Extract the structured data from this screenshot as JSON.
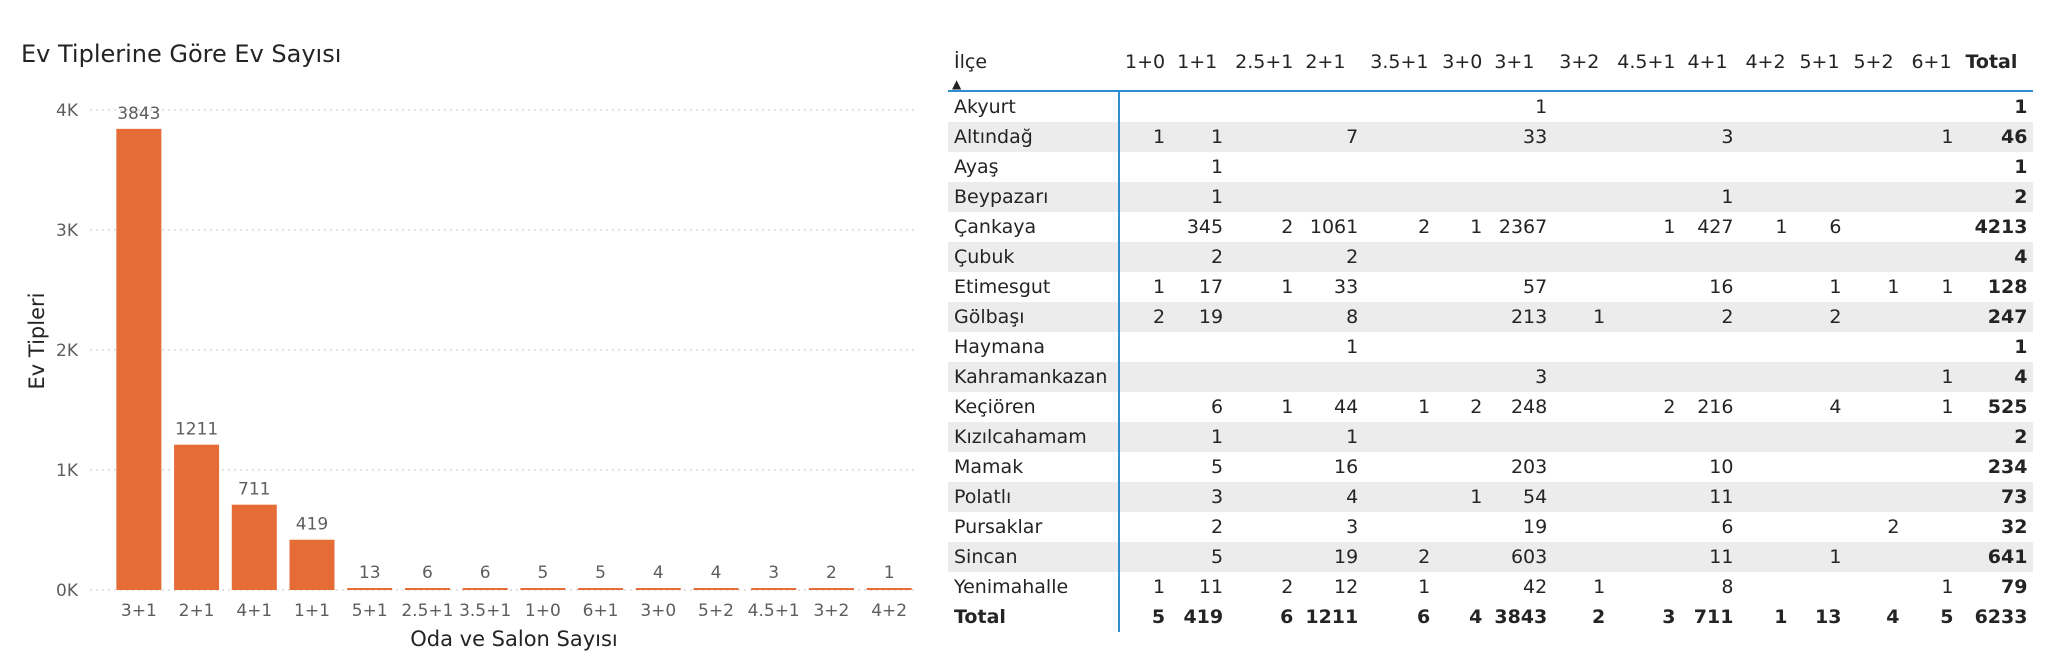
{
  "chart_data": {
    "type": "bar",
    "title": "Ev Tiplerine Göre Ev Sayısı",
    "xlabel": "Oda ve Salon Sayısı",
    "ylabel": "Ev Tipleri",
    "ylim": [
      0,
      4000
    ],
    "yticks": [
      0,
      1000,
      2000,
      3000,
      4000
    ],
    "ytick_labels": [
      "0K",
      "1K",
      "2K",
      "3K",
      "4K"
    ],
    "grid": true,
    "color": "#e66c37",
    "categories": [
      "3+1",
      "2+1",
      "4+1",
      "1+1",
      "5+1",
      "2.5+1",
      "3.5+1",
      "1+0",
      "6+1",
      "3+0",
      "5+2",
      "4.5+1",
      "3+2",
      "4+2"
    ],
    "values": [
      3843,
      1211,
      711,
      419,
      13,
      6,
      6,
      5,
      5,
      4,
      4,
      3,
      2,
      1
    ]
  },
  "matrix": {
    "row_header": "İlçe",
    "columns": [
      "1+0",
      "1+1",
      "2.5+1",
      "2+1",
      "3.5+1",
      "3+0",
      "3+1",
      "3+2",
      "4.5+1",
      "4+1",
      "4+2",
      "5+1",
      "5+2",
      "6+1",
      "Total"
    ],
    "rows": [
      {
        "name": "Akyurt",
        "cells": [
          "",
          "",
          "",
          "",
          "",
          "",
          "1",
          "",
          "",
          "",
          "",
          "",
          "",
          "",
          "1"
        ]
      },
      {
        "name": "Altındağ",
        "cells": [
          "1",
          "1",
          "",
          "7",
          "",
          "",
          "33",
          "",
          "",
          "3",
          "",
          "",
          "",
          "1",
          "46"
        ]
      },
      {
        "name": "Ayaş",
        "cells": [
          "",
          "1",
          "",
          "",
          "",
          "",
          "",
          "",
          "",
          "",
          "",
          "",
          "",
          "",
          "1"
        ]
      },
      {
        "name": "Beypazarı",
        "cells": [
          "",
          "1",
          "",
          "",
          "",
          "",
          "",
          "",
          "",
          "1",
          "",
          "",
          "",
          "",
          "2"
        ]
      },
      {
        "name": "Çankaya",
        "cells": [
          "",
          "345",
          "2",
          "1061",
          "2",
          "1",
          "2367",
          "",
          "1",
          "427",
          "1",
          "6",
          "",
          "",
          "4213"
        ]
      },
      {
        "name": "Çubuk",
        "cells": [
          "",
          "2",
          "",
          "2",
          "",
          "",
          "",
          "",
          "",
          "",
          "",
          "",
          "",
          "",
          "4"
        ]
      },
      {
        "name": "Etimesgut",
        "cells": [
          "1",
          "17",
          "1",
          "33",
          "",
          "",
          "57",
          "",
          "",
          "16",
          "",
          "1",
          "1",
          "1",
          "128"
        ]
      },
      {
        "name": "Gölbaşı",
        "cells": [
          "2",
          "19",
          "",
          "8",
          "",
          "",
          "213",
          "1",
          "",
          "2",
          "",
          "2",
          "",
          "",
          "247"
        ]
      },
      {
        "name": "Haymana",
        "cells": [
          "",
          "",
          "",
          "1",
          "",
          "",
          "",
          "",
          "",
          "",
          "",
          "",
          "",
          "",
          "1"
        ]
      },
      {
        "name": "Kahramankazan",
        "cells": [
          "",
          "",
          "",
          "",
          "",
          "",
          "3",
          "",
          "",
          "",
          "",
          "",
          "",
          "1",
          "4"
        ]
      },
      {
        "name": "Keçiören",
        "cells": [
          "",
          "6",
          "1",
          "44",
          "1",
          "2",
          "248",
          "",
          "2",
          "216",
          "",
          "4",
          "",
          "1",
          "525"
        ]
      },
      {
        "name": "Kızılcahamam",
        "cells": [
          "",
          "1",
          "",
          "1",
          "",
          "",
          "",
          "",
          "",
          "",
          "",
          "",
          "",
          "",
          "2"
        ]
      },
      {
        "name": "Mamak",
        "cells": [
          "",
          "5",
          "",
          "16",
          "",
          "",
          "203",
          "",
          "",
          "10",
          "",
          "",
          "",
          "",
          "234"
        ]
      },
      {
        "name": "Polatlı",
        "cells": [
          "",
          "3",
          "",
          "4",
          "",
          "1",
          "54",
          "",
          "",
          "11",
          "",
          "",
          "",
          "",
          "73"
        ]
      },
      {
        "name": "Pursaklar",
        "cells": [
          "",
          "2",
          "",
          "3",
          "",
          "",
          "19",
          "",
          "",
          "6",
          "",
          "",
          "2",
          "",
          "32"
        ]
      },
      {
        "name": "Sincan",
        "cells": [
          "",
          "5",
          "",
          "19",
          "2",
          "",
          "603",
          "",
          "",
          "11",
          "",
          "1",
          "",
          "",
          "641"
        ]
      },
      {
        "name": "Yenimahalle",
        "cells": [
          "1",
          "11",
          "2",
          "12",
          "1",
          "",
          "42",
          "1",
          "",
          "8",
          "",
          "",
          "",
          "1",
          "79"
        ]
      }
    ],
    "total_row": {
      "name": "Total",
      "cells": [
        "5",
        "419",
        "6",
        "1211",
        "6",
        "4",
        "3843",
        "2",
        "3",
        "711",
        "1",
        "13",
        "4",
        "5",
        "6233"
      ]
    },
    "accent_color": "#2b8fd1",
    "sort_icon": "sort-ascending-icon"
  }
}
